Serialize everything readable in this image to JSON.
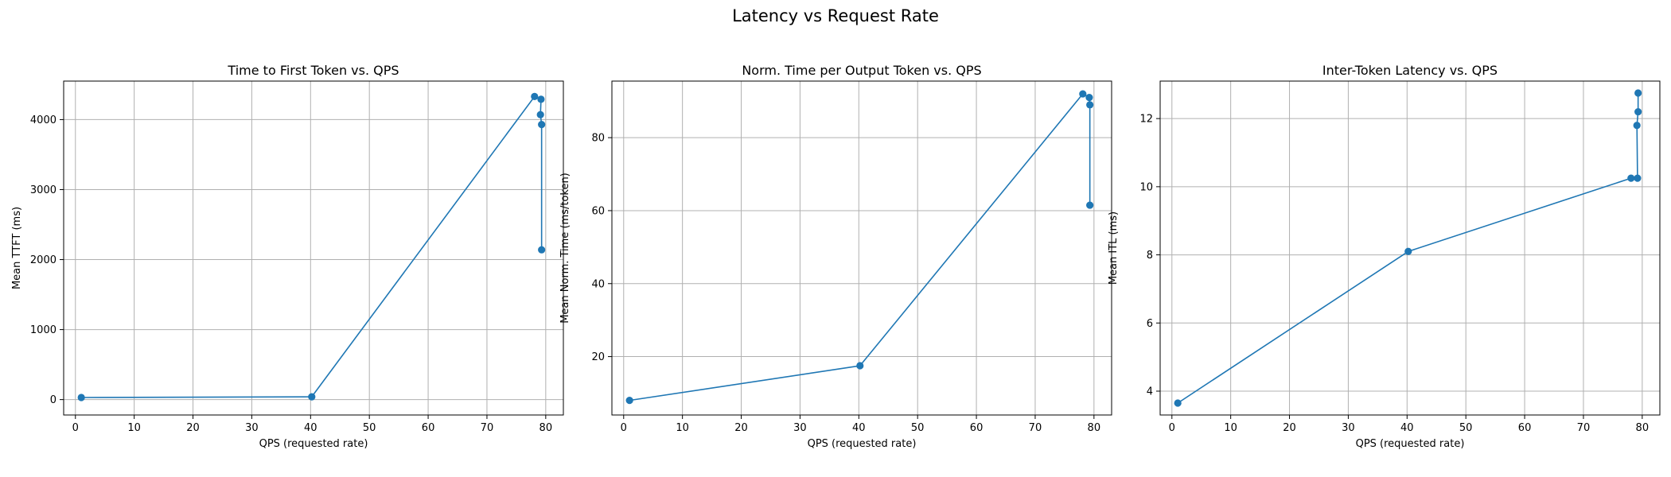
{
  "figure": {
    "title": "Latency vs Request Rate"
  },
  "style": {
    "line_color": "#1f77b4",
    "grid_color": "#b0b0b0"
  },
  "chart_data": [
    {
      "type": "line",
      "title": "Time to First Token vs. QPS",
      "xlabel": "QPS (requested rate)",
      "ylabel": "Mean TTFT (ms)",
      "xlim": [
        -2,
        83
      ],
      "ylim": [
        -220,
        4550
      ],
      "xticks": [
        0,
        10,
        20,
        30,
        40,
        50,
        60,
        70,
        80
      ],
      "yticks": [
        0,
        1000,
        2000,
        3000,
        4000
      ],
      "grid": true,
      "series": [
        {
          "x": [
            1,
            40.2,
            78.1,
            79.2,
            79.1,
            79.3,
            79.3
          ],
          "y": [
            30,
            40,
            4330,
            4290,
            4070,
            3930,
            2140
          ]
        }
      ]
    },
    {
      "type": "line",
      "title": "Norm. Time per Output Token vs. QPS",
      "xlabel": "QPS (requested rate)",
      "ylabel": "Mean Norm. Time (ms/token)",
      "xlim": [
        -2,
        83
      ],
      "ylim": [
        4,
        95.5
      ],
      "xticks": [
        0,
        10,
        20,
        30,
        40,
        50,
        60,
        70,
        80
      ],
      "yticks": [
        20,
        40,
        60,
        80
      ],
      "grid": true,
      "series": [
        {
          "x": [
            1,
            40.2,
            78.1,
            79.2,
            79.3,
            79.3
          ],
          "y": [
            8,
            17.5,
            92,
            91,
            89,
            61.5
          ]
        }
      ]
    },
    {
      "type": "line",
      "title": "Inter-Token Latency vs. QPS",
      "xlabel": "QPS (requested rate)",
      "ylabel": "Mean ITL (ms)",
      "xlim": [
        -2,
        83
      ],
      "ylim": [
        3.3,
        13.1
      ],
      "xticks": [
        0,
        10,
        20,
        30,
        40,
        50,
        60,
        70,
        80
      ],
      "yticks": [
        4,
        6,
        8,
        10,
        12
      ],
      "grid": true,
      "series": [
        {
          "x": [
            1,
            40.2,
            78.1,
            79.2,
            79.1,
            79.3,
            79.3
          ],
          "y": [
            3.65,
            8.1,
            10.25,
            10.25,
            11.8,
            12.2,
            12.75
          ]
        }
      ]
    }
  ]
}
